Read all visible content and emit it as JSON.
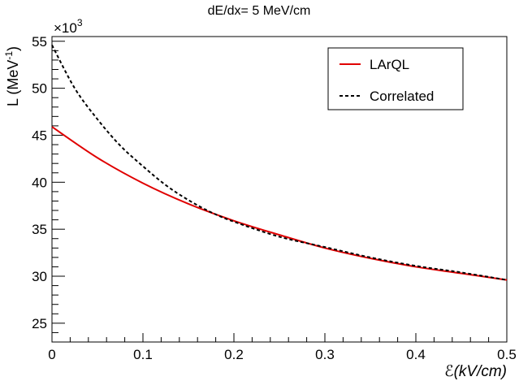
{
  "chart_data": {
    "type": "line",
    "title": "dE/dx= 5 MeV/cm",
    "xlabel": "ℰ(kV/cm)",
    "ylabel_main": "L (MeV",
    "ylabel_sup": "-1",
    "ylabel_close": ")",
    "exponent_base": "×10",
    "exponent_power": "3",
    "xlim": [
      0,
      0.5
    ],
    "ylim": [
      23,
      55.5
    ],
    "x_ticks": [
      {
        "value": 0,
        "label": "0"
      },
      {
        "value": 0.1,
        "label": "0.1"
      },
      {
        "value": 0.2,
        "label": "0.2"
      },
      {
        "value": 0.3,
        "label": "0.3"
      },
      {
        "value": 0.4,
        "label": "0.4"
      },
      {
        "value": 0.5,
        "label": "0.5"
      }
    ],
    "y_ticks": [
      {
        "value": 25,
        "label": "25"
      },
      {
        "value": 30,
        "label": "30"
      },
      {
        "value": 35,
        "label": "35"
      },
      {
        "value": 40,
        "label": "40"
      },
      {
        "value": 45,
        "label": "45"
      },
      {
        "value": 50,
        "label": "50"
      },
      {
        "value": 55,
        "label": "55"
      }
    ],
    "series": [
      {
        "name": "LArQL",
        "color": "#e00000",
        "style": "solid",
        "x": [
          0,
          0.05,
          0.1,
          0.15,
          0.2,
          0.25,
          0.3,
          0.35,
          0.4,
          0.45,
          0.5
        ],
        "y": [
          45.9,
          42.6,
          39.9,
          37.7,
          35.9,
          34.4,
          33.0,
          31.9,
          31.0,
          30.3,
          29.6
        ]
      },
      {
        "name": "Correlated",
        "color": "#000000",
        "style": "dashed",
        "x": [
          0,
          0.025,
          0.05,
          0.075,
          0.1,
          0.125,
          0.15,
          0.175,
          0.2,
          0.25,
          0.3,
          0.35,
          0.4,
          0.45,
          0.5
        ],
        "y": [
          54.6,
          50.0,
          46.7,
          43.9,
          41.7,
          39.7,
          38.1,
          36.8,
          35.8,
          34.2,
          33.1,
          32.0,
          31.1,
          30.4,
          29.6
        ]
      }
    ],
    "legend": {
      "position": "top-right",
      "entries": [
        "LArQL",
        "Correlated"
      ]
    }
  }
}
